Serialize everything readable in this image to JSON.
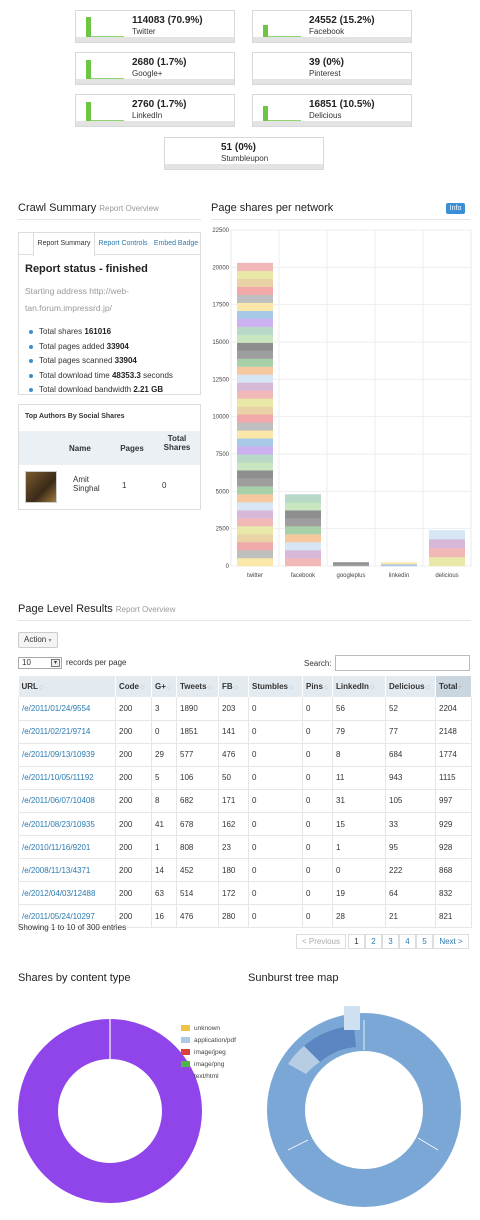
{
  "stats": [
    {
      "value": "114083 (70.9%)",
      "network": "Twitter",
      "level": 0.9
    },
    {
      "value": "24552 (15.2%)",
      "network": "Facebook",
      "level": 0.55
    },
    {
      "value": "2680 (1.7%)",
      "network": "Google+",
      "level": 0.85
    },
    {
      "value": "39 (0%)",
      "network": "Pinterest",
      "level": 0
    },
    {
      "value": "2760 (1.7%)",
      "network": "LinkedIn",
      "level": 0.85
    },
    {
      "value": "16851 (10.5%)",
      "network": "Delicious",
      "level": 0.7
    },
    {
      "value": "51 (0%)",
      "network": "Stumbleupon",
      "level": 0
    }
  ],
  "crawl": {
    "title": "Crawl Summary",
    "subtitle": "Report Overview",
    "tabs": [
      "Report Summary",
      "Report Controls",
      "Embed Badge"
    ],
    "status": "Report status - finished",
    "start_address": "Starting address http://web-tan.forum.impressrd.jp/",
    "items": [
      {
        "label": "Total shares",
        "value": "161016"
      },
      {
        "label": "Total pages added",
        "value": "33904"
      },
      {
        "label": "Total pages scanned",
        "value": "33904"
      },
      {
        "label": "Total download time",
        "value": "48353.3",
        "suffix": "seconds"
      },
      {
        "label": "Total download bandwidth",
        "value": "2.21 GB"
      }
    ]
  },
  "authors": {
    "title": "Top Authors By Social Shares",
    "headers": {
      "name": "Name",
      "pages": "Pages",
      "total": "Total Shares"
    },
    "rows": [
      {
        "name": "Amit Singhal",
        "pages": "1",
        "total": "0"
      }
    ]
  },
  "chart_section": {
    "title": "Page shares per network",
    "info": "Info"
  },
  "chart_data": {
    "type": "bar",
    "title": "Page shares per network",
    "categories": [
      "twitter",
      "facebook",
      "googleplus",
      "linkedin",
      "delicious"
    ],
    "values": [
      20300,
      4800,
      250,
      250,
      2400
    ],
    "ylim": [
      0,
      22500
    ],
    "yticks": [
      0,
      2500,
      5000,
      7500,
      10000,
      12500,
      15000,
      17500,
      20000,
      22500
    ],
    "stacked": true,
    "grid": true
  },
  "results": {
    "title": "Page Level Results",
    "subtitle": "Report Overview",
    "action": "Action",
    "length_value": "10",
    "length_label": "records per page",
    "search_label": "Search:",
    "columns": [
      "URL",
      "Code",
      "G+",
      "Tweets",
      "FB",
      "Stumbles",
      "Pins",
      "LinkedIn",
      "Delicious",
      "Total"
    ],
    "rows": [
      [
        "/e/2011/01/24/9554",
        "200",
        "3",
        "1890",
        "203",
        "0",
        "0",
        "56",
        "52",
        "2204"
      ],
      [
        "/e/2011/02/21/9714",
        "200",
        "0",
        "1851",
        "141",
        "0",
        "0",
        "79",
        "77",
        "2148"
      ],
      [
        "/e/2011/09/13/10939",
        "200",
        "29",
        "577",
        "476",
        "0",
        "0",
        "8",
        "684",
        "1774"
      ],
      [
        "/e/2011/10/05/11192",
        "200",
        "5",
        "106",
        "50",
        "0",
        "0",
        "11",
        "943",
        "1115"
      ],
      [
        "/e/2011/06/07/10408",
        "200",
        "8",
        "682",
        "171",
        "0",
        "0",
        "31",
        "105",
        "997"
      ],
      [
        "/e/2011/08/23/10935",
        "200",
        "41",
        "678",
        "162",
        "0",
        "0",
        "15",
        "33",
        "929"
      ],
      [
        "/e/2010/11/16/9201",
        "200",
        "1",
        "808",
        "23",
        "0",
        "0",
        "1",
        "95",
        "928"
      ],
      [
        "/e/2008/11/13/4371",
        "200",
        "14",
        "452",
        "180",
        "0",
        "0",
        "0",
        "222",
        "868"
      ],
      [
        "/e/2012/04/03/12488",
        "200",
        "63",
        "514",
        "172",
        "0",
        "0",
        "19",
        "64",
        "832"
      ],
      [
        "/e/2011/05/24/10297",
        "200",
        "16",
        "476",
        "280",
        "0",
        "0",
        "28",
        "21",
        "821"
      ]
    ],
    "showing": "Showing 1 to 10 of 300 entries",
    "pagination": {
      "prev": "< Previous",
      "pages": [
        "1",
        "2",
        "3",
        "4",
        "5"
      ],
      "next": "Next >"
    }
  },
  "content_type": {
    "title": "Shares by content type",
    "legend": [
      {
        "label": "unknown",
        "color": "#f0c24a"
      },
      {
        "label": "application/pdf",
        "color": "#a9cbe6"
      },
      {
        "label": "image/jpeg",
        "color": "#d9413a"
      },
      {
        "label": "image/png",
        "color": "#4fb349"
      },
      {
        "label": "text/html",
        "color": "#8f45ea"
      }
    ]
  },
  "sunburst": {
    "title": "Sunburst tree map"
  },
  "colors": {
    "accent": "#2a7ab0",
    "spark": "#6cc644",
    "badge": "#3b8fd6",
    "donut": "#8f45ea",
    "sunburst": "#7aa7d6"
  }
}
